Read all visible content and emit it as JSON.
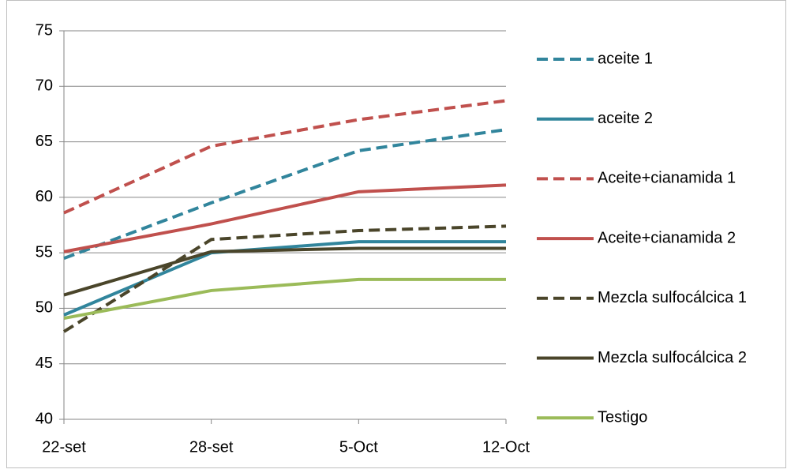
{
  "chart_data": {
    "type": "line",
    "categories": [
      "22-set",
      "28-set",
      "5-Oct",
      "12-Oct"
    ],
    "series": [
      {
        "name": "aceite 1",
        "color": "#31859c",
        "line_style": "dashed",
        "values": [
          54.5,
          59.5,
          64.2,
          66.1
        ]
      },
      {
        "name": "aceite 2",
        "color": "#31859c",
        "line_style": "solid",
        "values": [
          49.4,
          55.0,
          56.0,
          56.0
        ]
      },
      {
        "name": "Aceite+cianamida 1",
        "color": "#c0504d",
        "line_style": "dashed",
        "values": [
          58.6,
          64.6,
          67.0,
          68.7
        ]
      },
      {
        "name": "Aceite+cianamida 2",
        "color": "#c0504d",
        "line_style": "solid",
        "values": [
          55.1,
          57.6,
          60.5,
          61.1
        ]
      },
      {
        "name": "Mezcla sulfocálcica 1",
        "color": "#4a452a",
        "line_style": "dashed",
        "values": [
          47.9,
          56.2,
          57.0,
          57.4
        ]
      },
      {
        "name": "Mezcla sulfocálcica 2",
        "color": "#4a452a",
        "line_style": "solid",
        "values": [
          51.2,
          55.1,
          55.4,
          55.4
        ]
      },
      {
        "name": "Testigo",
        "color": "#9bbb59",
        "line_style": "solid",
        "values": [
          49.1,
          51.6,
          52.6,
          52.6
        ]
      }
    ],
    "ylim": [
      40,
      75
    ],
    "yticks": [
      40,
      45,
      50,
      55,
      60,
      65,
      70,
      75
    ],
    "grid": true,
    "legend": "right"
  }
}
